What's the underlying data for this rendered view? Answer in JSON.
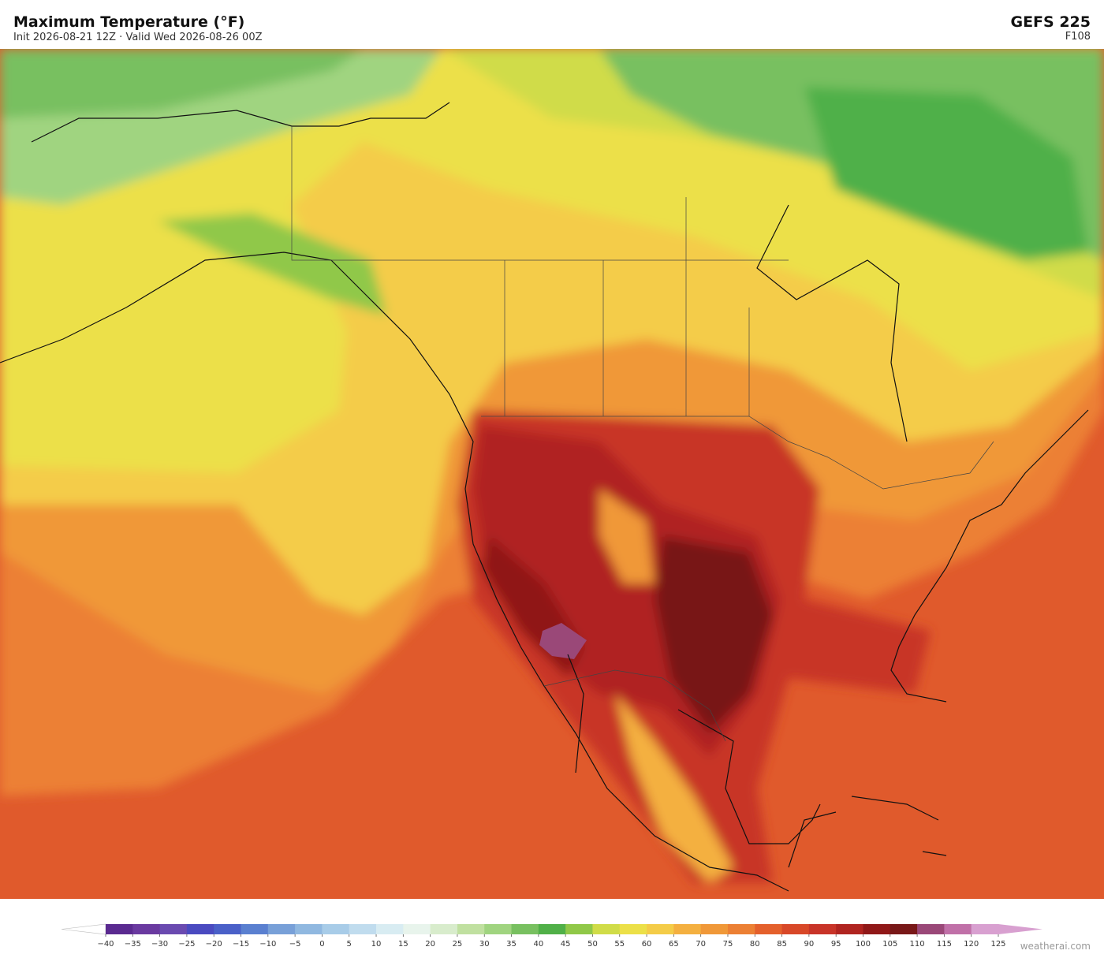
{
  "header": {
    "title": "Maximum Temperature  (°F)",
    "subtitle": "Init 2026-08-21 12Z   ·   Valid Wed 2026-08-26 00Z",
    "model": "GEFS  225",
    "forecast_hour": "F108"
  },
  "colorbar": {
    "ticks": [
      {
        "value": -40,
        "label": "−40"
      },
      {
        "value": -35,
        "label": "−35"
      },
      {
        "value": -30,
        "label": "−30"
      },
      {
        "value": -25,
        "label": "−25"
      },
      {
        "value": -20,
        "label": "−20"
      },
      {
        "value": -15,
        "label": "−15"
      },
      {
        "value": -10,
        "label": "−10"
      },
      {
        "value": -5,
        "label": "−5"
      },
      0,
      5,
      10,
      15,
      20,
      25,
      30,
      35,
      40,
      45,
      50,
      55,
      60,
      65,
      70,
      75,
      80,
      85,
      90,
      95,
      100,
      105,
      110,
      115,
      120,
      125
    ],
    "colors": [
      "#5a2a90",
      "#6a3aa0",
      "#6a4ab0",
      "#4a4ac0",
      "#4a60c8",
      "#5a80d0",
      "#78a0d8",
      "#90b8e0",
      "#a8cce8",
      "#c0dcee",
      "#d8ecf2",
      "#e8f4ec",
      "#d8eccc",
      "#c0e0a0",
      "#a0d480",
      "#78c060",
      "#50b048",
      "#90c848",
      "#d0dc48",
      "#ece048",
      "#f4cc48",
      "#f4b040",
      "#f09838",
      "#ec8034",
      "#e4602c",
      "#d84828",
      "#c83428",
      "#b02420",
      "#901818",
      "#781818",
      "#9a4878",
      "#c070a8",
      "#d8a0d0"
    ],
    "under_color": "#ffffff",
    "over_color": "#d8a0d0"
  },
  "footer": {
    "watermark": "weatherai.com"
  }
}
